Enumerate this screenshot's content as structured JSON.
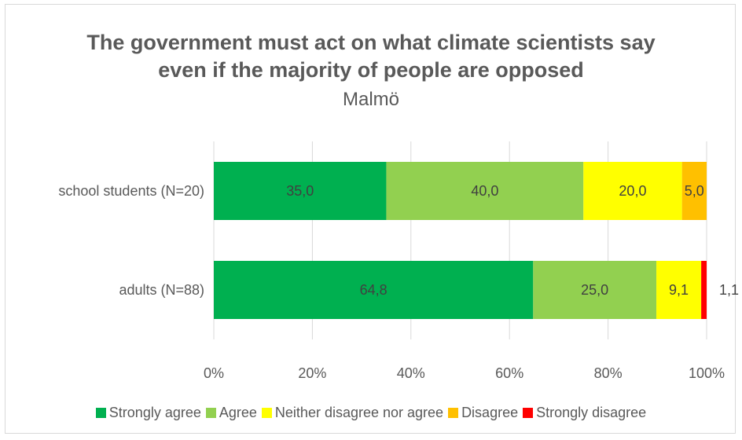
{
  "chart_data": {
    "type": "bar",
    "orientation": "horizontal",
    "stacked": "100%",
    "title": "The government must act on what climate scientists say even if the majority of people are opposed",
    "title_lines": [
      "The government must act on what climate scientists say",
      "even if the majority of people are opposed"
    ],
    "subtitle": "Malmö",
    "categories": [
      "school students (N=20)",
      "adults (N=88)"
    ],
    "series": [
      {
        "name": "Strongly agree",
        "color": "#00b050",
        "values": [
          35.0,
          64.8
        ],
        "labels": [
          "35,0",
          "64,8"
        ]
      },
      {
        "name": "Agree",
        "color": "#92d050",
        "values": [
          40.0,
          25.0
        ],
        "labels": [
          "40,0",
          "25,0"
        ]
      },
      {
        "name": "Neither disagree nor agree",
        "color": "#ffff00",
        "values": [
          20.0,
          9.1
        ],
        "labels": [
          "20,0",
          "9,1"
        ]
      },
      {
        "name": "Disagree",
        "color": "#ffc000",
        "values": [
          5.0,
          0
        ],
        "labels": [
          "5,0",
          ""
        ]
      },
      {
        "name": "Strongly disagree",
        "color": "#ff0000",
        "values": [
          0,
          1.1
        ],
        "labels": [
          "",
          "1,1"
        ]
      }
    ],
    "xlim": [
      0,
      100
    ],
    "xticks": [
      "0%",
      "20%",
      "40%",
      "60%",
      "80%",
      "100%"
    ],
    "grid": true,
    "legend_position": "bottom"
  }
}
